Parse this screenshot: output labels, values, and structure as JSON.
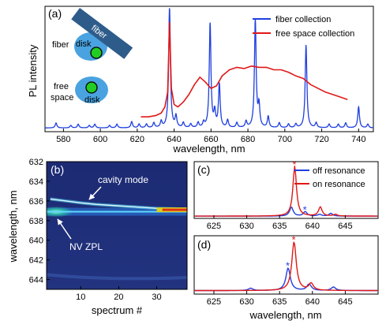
{
  "colors": {
    "fiber": "#1f3fe0",
    "free": "#e01818",
    "disk_blue": "#4aa3e0",
    "fiber_rod": "#2e5c8a",
    "nv_green": "#22cc22",
    "asterisk_red": "#e01818",
    "asterisk_blue": "#1f3fe0",
    "heatmap_bg": "#1e2d78",
    "heatmap_white": "#ffffff"
  },
  "icons": [
    "fiber-rod-icon",
    "microdisk-icon",
    "nv-center-icon"
  ],
  "panel_a": {
    "label": "(a)",
    "ylabel": "PL intensity",
    "xlabel": "wavelength, nm",
    "xticks": [
      "580",
      "600",
      "620",
      "640",
      "660",
      "680",
      "700",
      "720",
      "740"
    ],
    "legend": [
      "fiber collection",
      "free space collection"
    ],
    "inset": {
      "fiber_row_label": "fiber",
      "fiber_rod_label": "fiber",
      "disk_label_1": "disk",
      "free_row_label": "free",
      "free_row_label_2": "space",
      "disk_label_2": "disk"
    }
  },
  "panel_b": {
    "label": "(b)",
    "ylabel": "wavelength, nm",
    "xlabel": "spectrum #",
    "yticks": [
      "632",
      "634",
      "636",
      "638",
      "640",
      "642",
      "644"
    ],
    "xticks": [
      "10",
      "20",
      "30"
    ],
    "annotations": [
      "cavity mode",
      "NV ZPL"
    ]
  },
  "panel_c": {
    "label": "(c)",
    "xticks": [
      "625",
      "630",
      "635",
      "640",
      "645"
    ],
    "legend": [
      "off resonance",
      "on resonance"
    ],
    "marker": "*"
  },
  "panel_d": {
    "label": "(d)",
    "xticks": [
      "625",
      "630",
      "635",
      "640",
      "645"
    ],
    "xlabel": "wavelength, nm",
    "marker": "*"
  },
  "chart_data": [
    {
      "type": "line",
      "panel": "a",
      "xlabel": "wavelength, nm",
      "ylabel": "PL intensity",
      "xlim": [
        570,
        748
      ],
      "ylim": [
        0,
        1
      ],
      "legend_position": "top-right",
      "series": [
        {
          "name": "fiber collection",
          "color": "#1f3fe0",
          "baseline": 0.03,
          "peaks": [
            {
              "x": 576,
              "y": 0.07
            },
            {
              "x": 584,
              "y": 0.05
            },
            {
              "x": 588,
              "y": 0.06
            },
            {
              "x": 594,
              "y": 0.05
            },
            {
              "x": 597,
              "y": 0.06
            },
            {
              "x": 605,
              "y": 0.05
            },
            {
              "x": 609,
              "y": 0.06
            },
            {
              "x": 617,
              "y": 0.08
            },
            {
              "x": 621,
              "y": 0.06
            },
            {
              "x": 625,
              "y": 0.06
            },
            {
              "x": 629,
              "y": 0.07
            },
            {
              "x": 633,
              "y": 0.08
            },
            {
              "x": 637.5,
              "y": 1.0
            },
            {
              "x": 641,
              "y": 0.12
            },
            {
              "x": 645,
              "y": 0.07
            },
            {
              "x": 649,
              "y": 0.06
            },
            {
              "x": 653,
              "y": 0.07
            },
            {
              "x": 656,
              "y": 0.07
            },
            {
              "x": 659.5,
              "y": 0.87
            },
            {
              "x": 662,
              "y": 0.15
            },
            {
              "x": 664.5,
              "y": 0.38
            },
            {
              "x": 669,
              "y": 0.09
            },
            {
              "x": 674,
              "y": 0.07
            },
            {
              "x": 679,
              "y": 0.08
            },
            {
              "x": 684,
              "y": 0.9
            },
            {
              "x": 686,
              "y": 0.2
            },
            {
              "x": 691,
              "y": 0.12
            },
            {
              "x": 697,
              "y": 0.07
            },
            {
              "x": 702,
              "y": 0.06
            },
            {
              "x": 706,
              "y": 0.06
            },
            {
              "x": 711.5,
              "y": 0.7
            },
            {
              "x": 717,
              "y": 0.07
            },
            {
              "x": 724,
              "y": 0.06
            },
            {
              "x": 729,
              "y": 0.06
            },
            {
              "x": 733,
              "y": 0.07
            },
            {
              "x": 740,
              "y": 0.2
            },
            {
              "x": 745,
              "y": 0.06
            }
          ]
        },
        {
          "name": "free space collection",
          "color": "#e01818",
          "x": [
            622,
            626,
            630,
            633,
            635,
            636.5,
            637.5,
            638.5,
            640,
            642,
            645,
            648,
            651,
            654,
            657,
            660,
            663,
            666,
            670,
            674,
            678,
            682,
            686,
            690,
            694,
            698,
            702,
            706,
            710,
            714,
            718,
            722,
            726,
            730,
            734
          ],
          "y": [
            0.12,
            0.12,
            0.13,
            0.15,
            0.2,
            0.32,
            0.88,
            0.35,
            0.22,
            0.2,
            0.24,
            0.3,
            0.38,
            0.44,
            0.4,
            0.35,
            0.37,
            0.45,
            0.5,
            0.52,
            0.51,
            0.53,
            0.52,
            0.52,
            0.5,
            0.5,
            0.48,
            0.45,
            0.43,
            0.38,
            0.35,
            0.32,
            0.3,
            0.28,
            0.26
          ]
        }
      ]
    },
    {
      "type": "heatmap",
      "panel": "b",
      "xlabel": "spectrum #",
      "ylabel": "wavelength, nm",
      "xlim": [
        1,
        38
      ],
      "ylim": [
        632,
        645
      ],
      "y_inverted": true,
      "features": [
        {
          "name": "cavity mode",
          "x": [
            2,
            6,
            10,
            14,
            18,
            22,
            26,
            30,
            34,
            38
          ],
          "y": [
            635.8,
            636.0,
            636.2,
            636.35,
            636.45,
            636.55,
            636.65,
            636.75,
            636.8,
            636.85
          ]
        },
        {
          "name": "NV ZPL",
          "x": [
            1,
            38
          ],
          "y": [
            637.1,
            637.1
          ]
        }
      ]
    },
    {
      "type": "line",
      "panel": "c",
      "xlim": [
        622,
        650
      ],
      "ylim": [
        0,
        1
      ],
      "legend_position": "top-right",
      "series": [
        {
          "name": "off resonance",
          "color": "#1f3fe0",
          "baseline": 0.04,
          "peaks": [
            {
              "x": 636.8,
              "y": 0.2
            },
            {
              "x": 638.9,
              "y": 0.12
            },
            {
              "x": 641.1,
              "y": 0.07
            },
            {
              "x": 642.8,
              "y": 0.09
            }
          ]
        },
        {
          "name": "on resonance",
          "color": "#e01818",
          "baseline": 0.04,
          "peaks": [
            {
              "x": 637.3,
              "y": 0.92
            },
            {
              "x": 641.2,
              "y": 0.2
            },
            {
              "x": 643.5,
              "y": 0.07
            }
          ]
        }
      ],
      "markers": [
        {
          "series": "on resonance",
          "x": 637.3
        },
        {
          "series": "off resonance",
          "x": 638.9
        }
      ]
    },
    {
      "type": "line",
      "panel": "d",
      "xlabel": "wavelength, nm",
      "xlim": [
        622,
        650
      ],
      "ylim": [
        0,
        1
      ],
      "series": [
        {
          "name": "off resonance",
          "color": "#1f3fe0",
          "baseline": 0.06,
          "peaks": [
            {
              "x": 630.6,
              "y": 0.1
            },
            {
              "x": 636.3,
              "y": 0.45
            },
            {
              "x": 639.5,
              "y": 0.17
            },
            {
              "x": 643.2,
              "y": 0.12
            }
          ]
        },
        {
          "name": "on resonance",
          "color": "#e01818",
          "baseline": 0.06,
          "peaks": [
            {
              "x": 637.2,
              "y": 0.9
            },
            {
              "x": 639.8,
              "y": 0.18
            }
          ]
        }
      ],
      "markers": [
        {
          "series": "on resonance",
          "x": 637.2
        },
        {
          "series": "off resonance",
          "x": 636.3
        }
      ]
    }
  ]
}
